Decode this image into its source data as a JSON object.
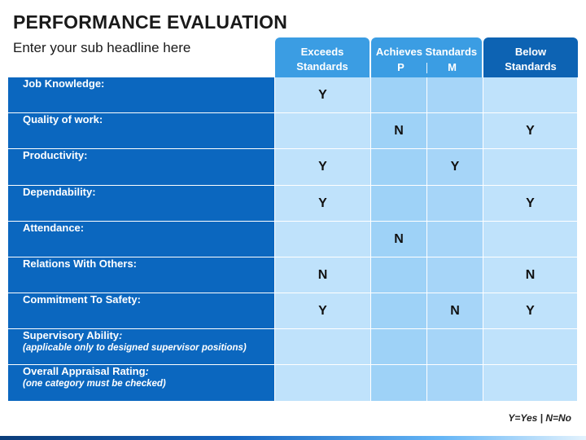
{
  "header": {
    "title": "PERFORMANCE EVALUATION",
    "subtitle": "Enter your sub headline here"
  },
  "columns": {
    "exceeds_line1": "Exceeds",
    "exceeds_line2": "Standards",
    "achieves": "Achieves Standards",
    "achieves_p": "P",
    "achieves_m": "M",
    "below_line1": "Below",
    "below_line2": "Standards"
  },
  "rows": [
    {
      "label": "Job Knowledge:",
      "note": "",
      "exceeds": "Y",
      "p": "",
      "m": "",
      "below": ""
    },
    {
      "label": "Quality of work:",
      "note": "",
      "exceeds": "",
      "p": "N",
      "m": "",
      "below": "Y"
    },
    {
      "label": "Productivity:",
      "note": "",
      "exceeds": "Y",
      "p": "",
      "m": "Y",
      "below": ""
    },
    {
      "label": "Dependability:",
      "note": "",
      "exceeds": "Y",
      "p": "",
      "m": "",
      "below": "Y"
    },
    {
      "label": "Attendance:",
      "note": "",
      "exceeds": "",
      "p": "N",
      "m": "",
      "below": ""
    },
    {
      "label": "Relations With Others:",
      "note": "",
      "exceeds": "N",
      "p": "",
      "m": "",
      "below": "N"
    },
    {
      "label": "Commitment To Safety:",
      "note": "",
      "exceeds": "Y",
      "p": "",
      "m": "N",
      "below": "Y"
    },
    {
      "label": "Supervisory Ability",
      "label_suffix": ":",
      "note": "(applicable only to designed supervisor positions)",
      "exceeds": "",
      "p": "",
      "m": "",
      "below": ""
    },
    {
      "label": "Overall Appraisal Rating",
      "label_suffix": ":",
      "note": "(one category must be checked)",
      "exceeds": "",
      "p": "",
      "m": "",
      "below": ""
    }
  ],
  "legend": "Y=Yes | N=No",
  "colors": {
    "label_bg": "#0b67bf",
    "exceeds_header": "#3b9de3",
    "below_header": "#0d63b3",
    "cell_light": "#bfe2fb",
    "cell_mid": "#9ed2f7"
  }
}
